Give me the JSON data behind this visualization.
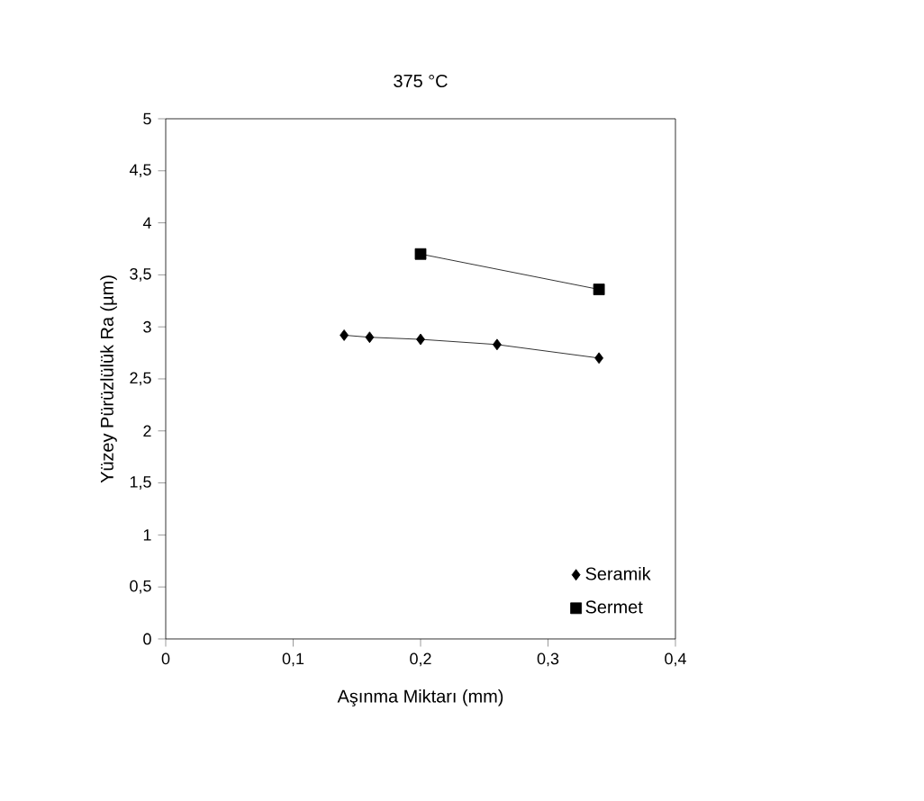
{
  "chart_data": {
    "type": "line",
    "title": "375 °C",
    "xlabel": "Aşınma Miktarı (mm)",
    "ylabel": "Yüzey Pürüzlülük Ra (µm)",
    "xlim": [
      0,
      0.4
    ],
    "xticks": [
      0,
      {
        "value": 0.1,
        "label": "0,1"
      },
      {
        "value": 0.2,
        "label": "0,2"
      },
      {
        "value": 0.3,
        "label": "0,3"
      },
      {
        "value": 0.4,
        "label": "0,4"
      }
    ],
    "ylim": [
      0,
      5
    ],
    "yticks": [
      0,
      {
        "value": 0.5,
        "label": "0,5"
      },
      1,
      {
        "value": 1.5,
        "label": "1,5"
      },
      2,
      {
        "value": 2.5,
        "label": "2,5"
      },
      3,
      {
        "value": 3.5,
        "label": "3,5"
      },
      4,
      {
        "value": 4.5,
        "label": "4,5"
      },
      5
    ],
    "legend": "bottom right",
    "grid": false,
    "series": [
      {
        "name": "Seramik",
        "color": "#000000",
        "marker": "diamond",
        "x": [
          0.14,
          0.16,
          0.2,
          0.26,
          0.34
        ],
        "values": [
          2.92,
          2.9,
          2.88,
          2.83,
          2.7
        ]
      },
      {
        "name": "Sermet",
        "color": "#000000",
        "marker": "square",
        "x": [
          0.2,
          0.34
        ],
        "values": [
          3.7,
          3.36
        ]
      }
    ]
  }
}
